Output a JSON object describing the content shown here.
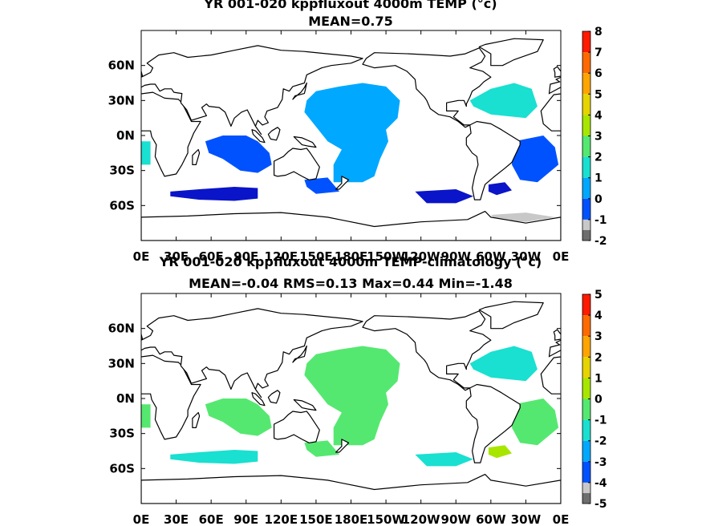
{
  "panels": [
    {
      "title": "YR 001-020 kppfluxout 4000m TEMP (°c)",
      "subtitle": "MEAN=0.75",
      "colorbar": {
        "ticks": [
          "8",
          "7",
          "6",
          "5",
          "4",
          "3",
          "2",
          "1",
          "0",
          "-1",
          "-2"
        ],
        "colors": [
          "#ff1a00",
          "#ff6a00",
          "#ffa500",
          "#e6d400",
          "#a8e600",
          "#55e870",
          "#19e0d0",
          "#00a8ff",
          "#0052ff",
          "#0a14c8",
          "#c8c8c8",
          "#6e6e6e"
        ]
      }
    },
    {
      "title": "YR 001-020 kppfluxout 4000m TEMP-climatology (°c)",
      "subtitle": "MEAN=-0.04   RMS=0.13   Max=0.44   Min=-1.48",
      "colorbar": {
        "ticks": [
          "5",
          "4",
          "3",
          "2",
          "1",
          "0",
          "-1",
          "-2",
          "-3",
          "-4",
          "-5"
        ],
        "colors": [
          "#ff1a00",
          "#ff6a00",
          "#ffa500",
          "#e6d400",
          "#a8e600",
          "#55e870",
          "#19e0d0",
          "#00a8ff",
          "#0052ff",
          "#0a14c8",
          "#c8c8c8",
          "#6e6e6e"
        ]
      }
    }
  ],
  "axes": {
    "lon_labels": [
      "0E",
      "30E",
      "60E",
      "90E",
      "120E",
      "150E",
      "180E",
      "150W",
      "120W",
      "90W",
      "60W",
      "30W",
      "0E"
    ],
    "lat_labels": [
      "60N",
      "30N",
      "0N",
      "30S",
      "60S"
    ]
  }
}
